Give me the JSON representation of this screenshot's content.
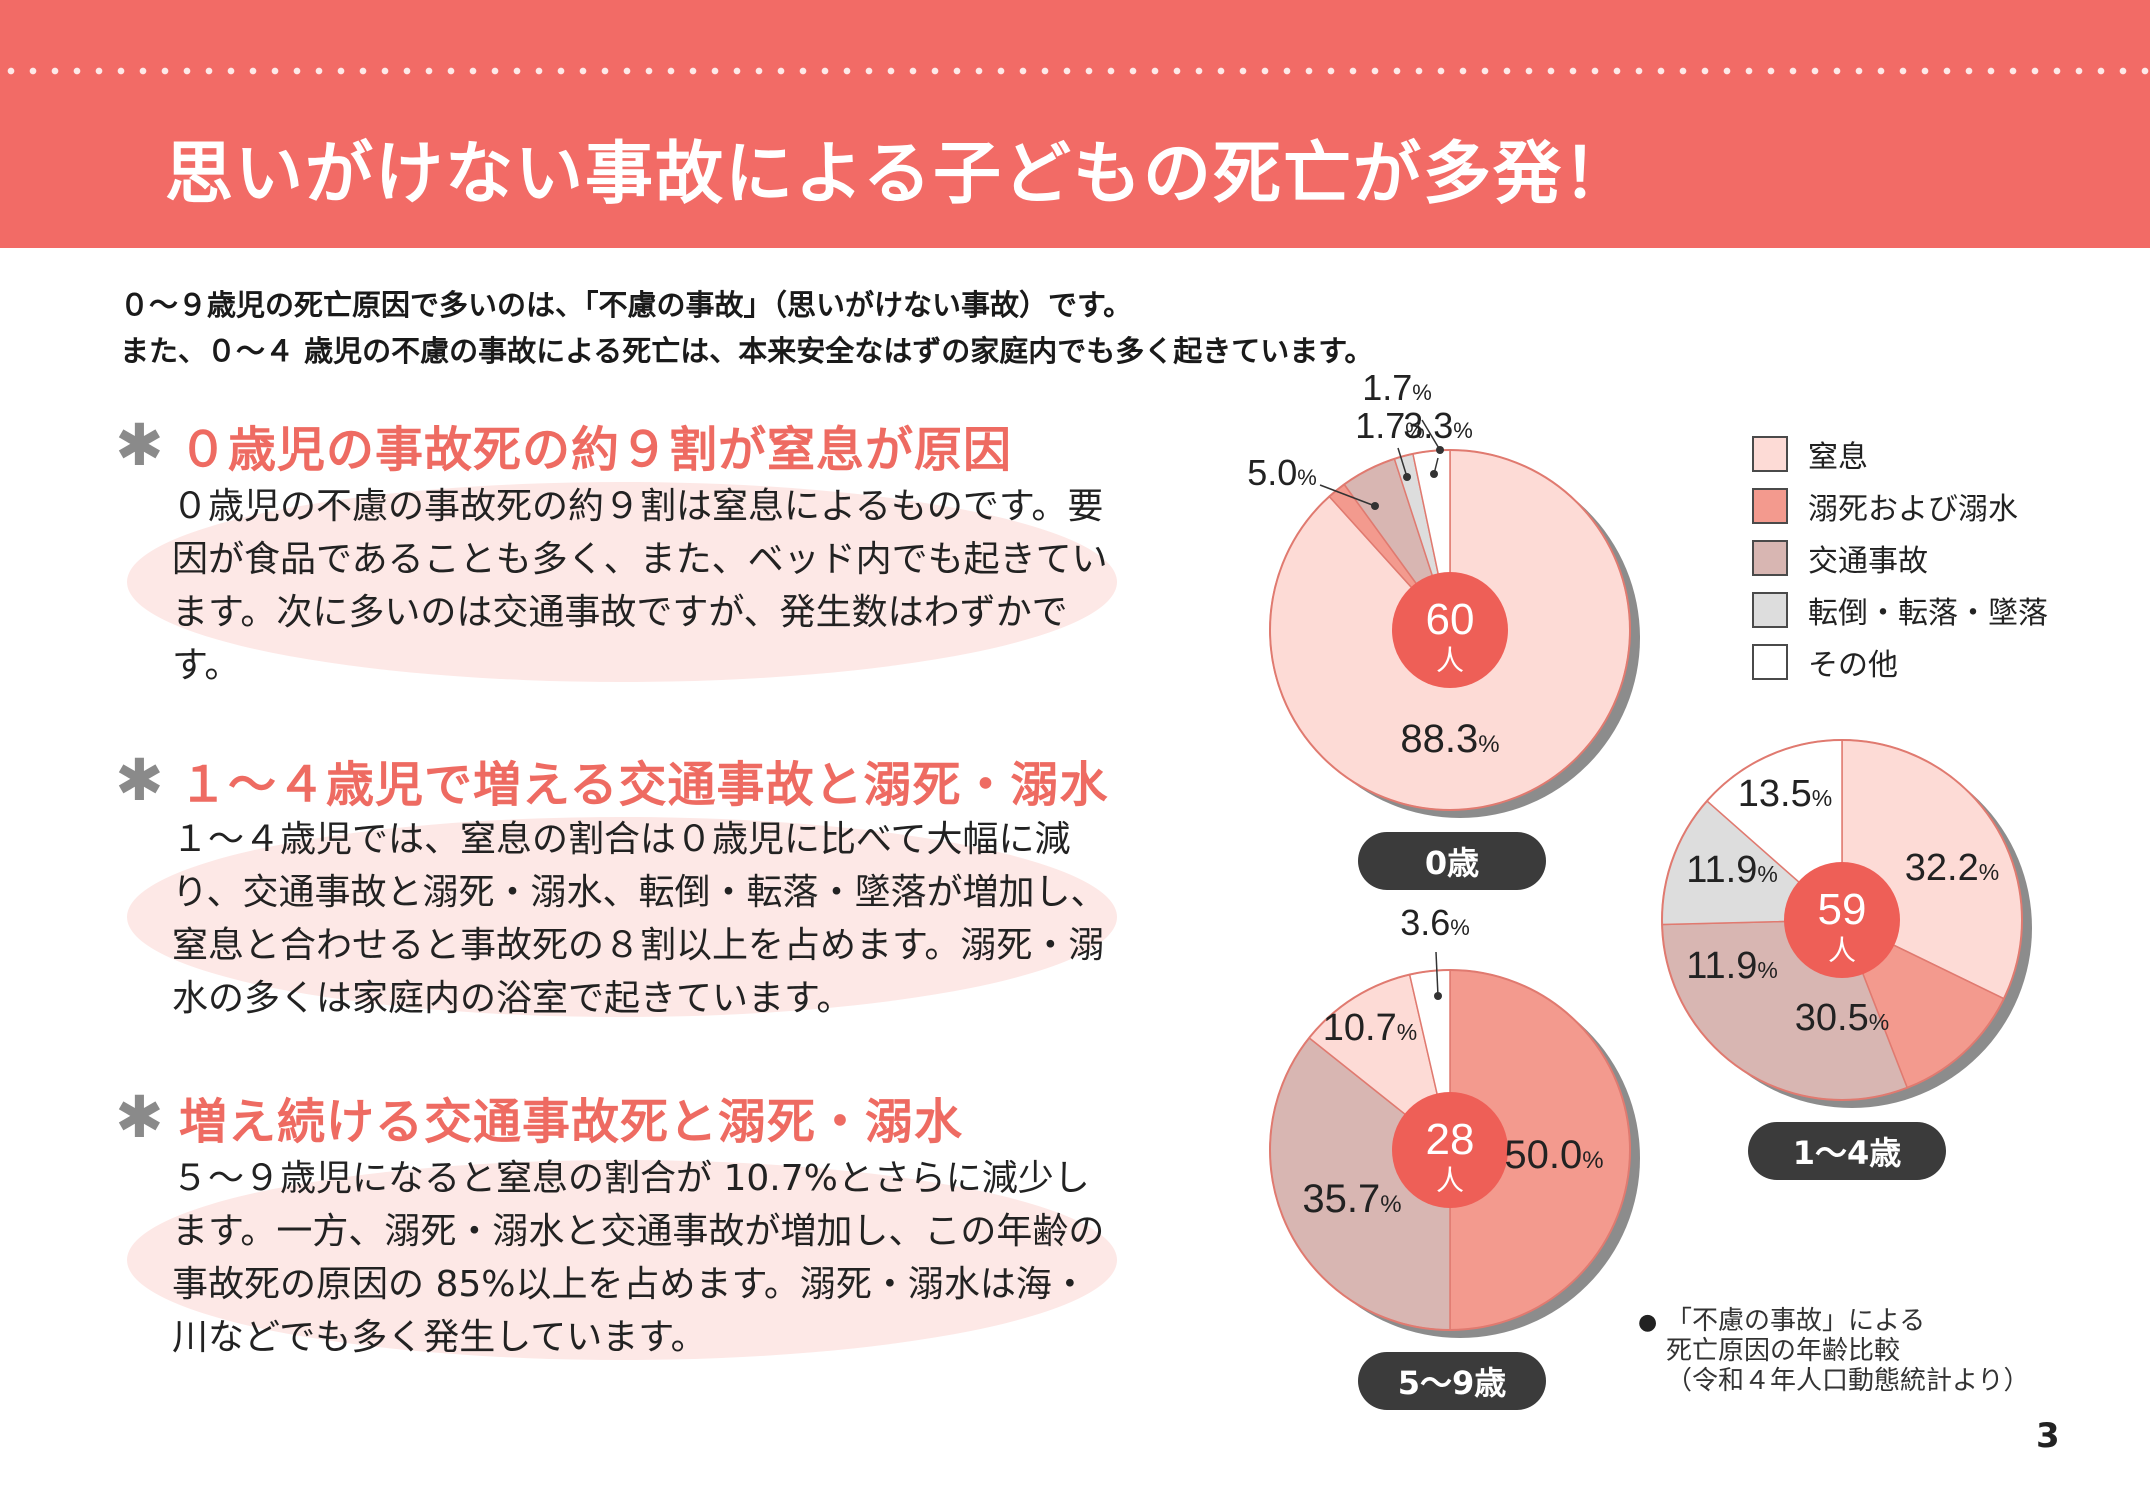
{
  "header": {
    "title": "思いがけない事故による子どもの死亡が多発！"
  },
  "intro": {
    "line1": "０～９歳児の死亡原因で多いのは、「不慮の事故」（思いがけない事故）です。",
    "line2": "また、０～４ 歳児の不慮の事故による死亡は、本来安全なはずの家庭内でも多く起きています。"
  },
  "sections": [
    {
      "title": "０歳児の事故死の約９割が窒息が原因",
      "body": "０歳児の不慮の事故死の約９割は窒息によるものです。要因が食品であることも多く、また、ベッド内でも起きています。次に多いのは交通事故ですが、発生数はわずかです。"
    },
    {
      "title": "１～４歳児で増える交通事故と溺死・溺水",
      "body": "１～４歳児では、窒息の割合は０歳児に比べて大幅に減り、交通事故と溺死・溺水、転倒・転落・墜落が増加し、窒息と合わせると事故死の８割以上を占めます。溺死・溺水の多くは家庭内の浴室で起きています。"
    },
    {
      "title": "増え続ける交通事故死と溺死・溺水",
      "body": "５～９歳児になると窒息の割合が 10.7%とさらに減少します。一方、溺死・溺水と交通事故が増加し、この年齢の事故死の原因の 85%以上を占めます。溺死・溺水は海・川などでも多く発生しています。"
    }
  ],
  "legend": [
    {
      "label": "窒息",
      "color": "#fddbd6"
    },
    {
      "label": "溺死および溺水",
      "color": "#f39a8e"
    },
    {
      "label": "交通事故",
      "color": "#d8b6b2"
    },
    {
      "label": "転倒・転落・墜落",
      "color": "#dddddd"
    },
    {
      "label": "その他",
      "color": "#ffffff"
    }
  ],
  "chart_data": [
    {
      "type": "pie",
      "age_label": "0歳",
      "total_number": "60",
      "total_unit": "人",
      "categories": [
        "窒息",
        "溺死および溺水",
        "交通事故",
        "転倒・転落・墜落",
        "その他"
      ],
      "values": [
        88.3,
        1.7,
        5.0,
        1.7,
        3.3
      ],
      "value_labels": [
        "88.3",
        "1.7",
        "5.0",
        "1.7",
        "3.3"
      ],
      "unit": "%"
    },
    {
      "type": "pie",
      "age_label": "1～4歳",
      "total_number": "59",
      "total_unit": "人",
      "categories": [
        "窒息",
        "溺死および溺水",
        "交通事故",
        "転倒・転落・墜落",
        "その他"
      ],
      "values": [
        32.2,
        11.9,
        30.5,
        11.9,
        13.5
      ],
      "value_labels": [
        "32.2",
        "11.9",
        "30.5",
        "11.9",
        "13.5"
      ],
      "unit": "%"
    },
    {
      "type": "pie",
      "age_label": "5～9歳",
      "total_number": "28",
      "total_unit": "人",
      "categories": [
        "溺死および溺水",
        "交通事故",
        "窒息",
        "その他"
      ],
      "values": [
        50.0,
        35.7,
        10.7,
        3.6
      ],
      "value_labels": [
        "50.0",
        "35.7",
        "10.7",
        "3.6"
      ],
      "unit": "%"
    }
  ],
  "note": {
    "line1": "「不慮の事故」による",
    "line2": "死亡原因の年齢比較",
    "line3": "（令和４年人口動態統計より）"
  },
  "page_number": "3"
}
